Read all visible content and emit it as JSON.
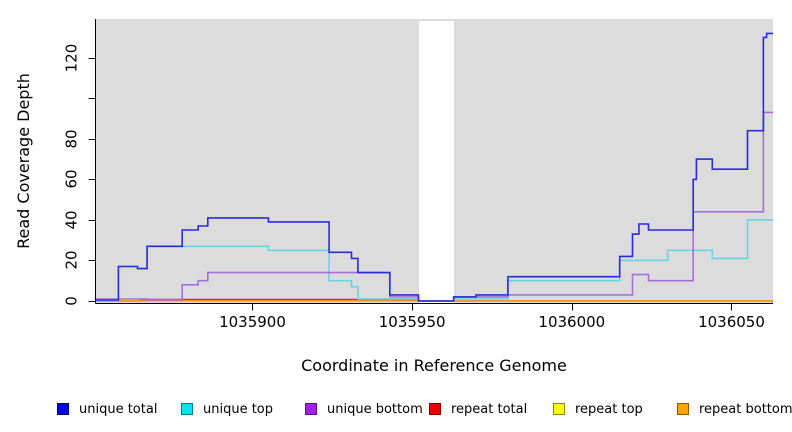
{
  "chart_data": {
    "type": "line",
    "style": "step",
    "title": "",
    "xlabel": "Coordinate in Reference Genome",
    "ylabel": "Read Coverage Depth",
    "xlim": [
      1035851,
      1036063
    ],
    "ylim": [
      0,
      139
    ],
    "grid": false,
    "legend_position": "bottom",
    "panel_bg": "#DCDCDC",
    "no_data_region": [
      1035952,
      1035963
    ],
    "x_ticks": [
      {
        "v": 1035900,
        "label": "1035900"
      },
      {
        "v": 1035950,
        "label": "1035950"
      },
      {
        "v": 1036000,
        "label": "1036000"
      },
      {
        "v": 1036050,
        "label": "1036050"
      }
    ],
    "y_ticks": [
      {
        "v": 0,
        "label": "0"
      },
      {
        "v": 20,
        "label": "20"
      },
      {
        "v": 40,
        "label": "40"
      },
      {
        "v": 60,
        "label": "60"
      },
      {
        "v": 80,
        "label": "80"
      },
      {
        "v": 100,
        "label": ""
      },
      {
        "v": 120,
        "label": "120"
      }
    ],
    "series": [
      {
        "name": "unique total",
        "line_color": "#2A2ADF",
        "swatch_color": "#0000E6",
        "points": [
          [
            1035851,
            0.5
          ],
          [
            1035858,
            17
          ],
          [
            1035864,
            16
          ],
          [
            1035867,
            27
          ],
          [
            1035878,
            35
          ],
          [
            1035883,
            37
          ],
          [
            1035886,
            41
          ],
          [
            1035905,
            39
          ],
          [
            1035924,
            24
          ],
          [
            1035931,
            21
          ],
          [
            1035933,
            14
          ],
          [
            1035943,
            3
          ],
          [
            1035952,
            0
          ],
          [
            1035963,
            2
          ],
          [
            1035970,
            3
          ],
          [
            1035980,
            12
          ],
          [
            1036015,
            22
          ],
          [
            1036019,
            33
          ],
          [
            1036021,
            38
          ],
          [
            1036024,
            35
          ],
          [
            1036038,
            60
          ],
          [
            1036039,
            70
          ],
          [
            1036044,
            65
          ],
          [
            1036055,
            84
          ],
          [
            1036060,
            130
          ],
          [
            1036061,
            132
          ]
        ]
      },
      {
        "name": "unique top",
        "line_color": "#63D6E2",
        "swatch_color": "#00E5EE",
        "points": [
          [
            1035851,
            0.3
          ],
          [
            1035858,
            17
          ],
          [
            1035864,
            16
          ],
          [
            1035867,
            27
          ],
          [
            1035905,
            25
          ],
          [
            1035924,
            10
          ],
          [
            1035931,
            7
          ],
          [
            1035933,
            1
          ],
          [
            1035952,
            0
          ],
          [
            1035963,
            1
          ],
          [
            1035980,
            10
          ],
          [
            1036015,
            20
          ],
          [
            1036030,
            25
          ],
          [
            1036044,
            21
          ],
          [
            1036055,
            40
          ]
        ]
      },
      {
        "name": "unique bottom",
        "line_color": "#A571D9",
        "swatch_color": "#A020F0",
        "points": [
          [
            1035851,
            1
          ],
          [
            1035867,
            0.5
          ],
          [
            1035878,
            8
          ],
          [
            1035883,
            10
          ],
          [
            1035886,
            14
          ],
          [
            1035943,
            2
          ],
          [
            1035952,
            0
          ],
          [
            1035963,
            2
          ],
          [
            1035980,
            3
          ],
          [
            1036019,
            13
          ],
          [
            1036024,
            10
          ],
          [
            1036038,
            44
          ],
          [
            1036060,
            93
          ]
        ]
      },
      {
        "name": "repeat total",
        "line_color": "#C43048",
        "swatch_color": "#EE0000",
        "points": [
          [
            1035851,
            0
          ],
          [
            1035865,
            0.7
          ],
          [
            1035952,
            0
          ]
        ]
      },
      {
        "name": "repeat top",
        "line_color": "#F2F22A",
        "swatch_color": "#FFFF00",
        "points": [
          [
            1035851,
            0
          ]
        ]
      },
      {
        "name": "repeat bottom",
        "line_color": "#FFA513",
        "swatch_color": "#FFA500",
        "points": [
          [
            1035851,
            0
          ]
        ]
      }
    ]
  }
}
